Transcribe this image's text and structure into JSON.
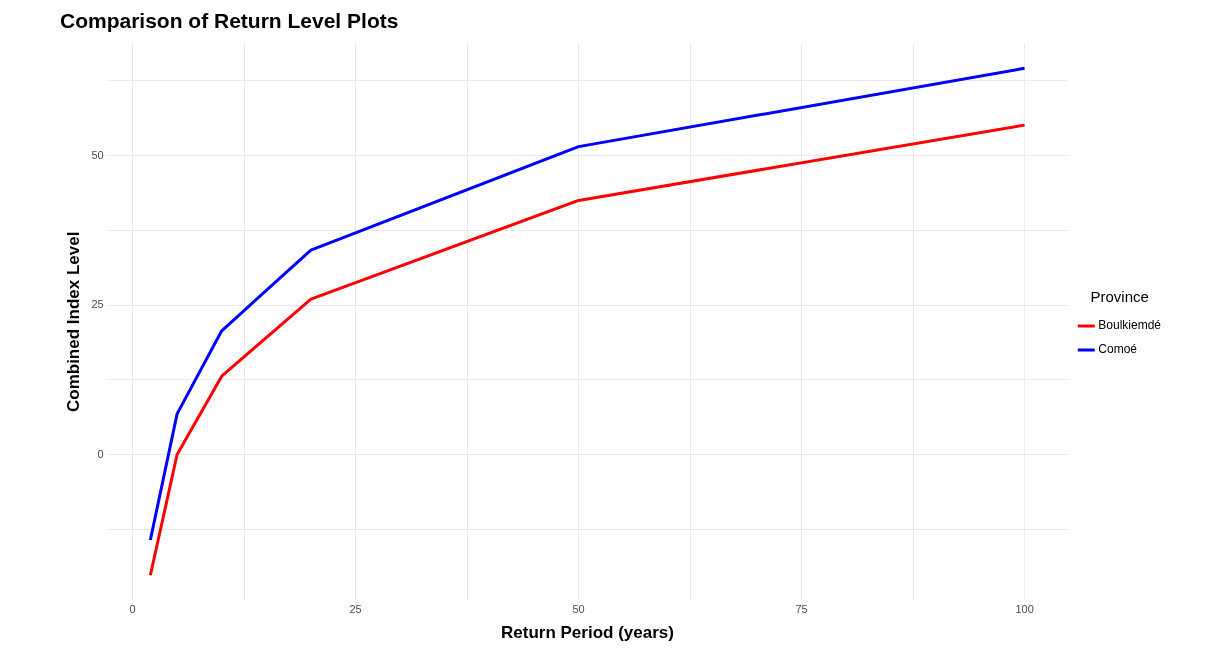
{
  "chart_data": {
    "type": "line",
    "title": "Comparison of Return Level Plots",
    "xlabel": "Return Period (years)",
    "ylabel": "Combined Index Level",
    "legend_title": "Province",
    "legend": "right",
    "x": [
      2,
      5,
      10,
      20,
      50,
      100
    ],
    "series": [
      {
        "name": "Boulkiemdé",
        "color": "#ff0000",
        "values": [
          -20.2,
          0,
          13.1,
          26,
          42.5,
          55.1
        ]
      },
      {
        "name": "Comoé",
        "color": "#0000ff",
        "values": [
          -14.3,
          6.8,
          20.7,
          34.2,
          51.5,
          64.6
        ]
      }
    ],
    "xlim": [
      -2.9,
      104.9
    ],
    "ylim": [
      -24.4,
      68.8
    ],
    "xticks": [
      0,
      {
        "value": 12.5,
        "label": null
      },
      25,
      {
        "value": 37.5,
        "label": null
      },
      50,
      {
        "value": 62.5,
        "label": null
      },
      75,
      {
        "value": 87.5,
        "label": null
      },
      100
    ],
    "yticks": [
      {
        "value": -12.5,
        "label": null
      },
      0,
      {
        "value": 12.5,
        "label": null
      },
      25,
      {
        "value": 37.5,
        "label": null
      },
      50,
      {
        "value": 62.5,
        "label": null
      }
    ],
    "grid": true,
    "marker": "none",
    "line_style": "solid"
  }
}
